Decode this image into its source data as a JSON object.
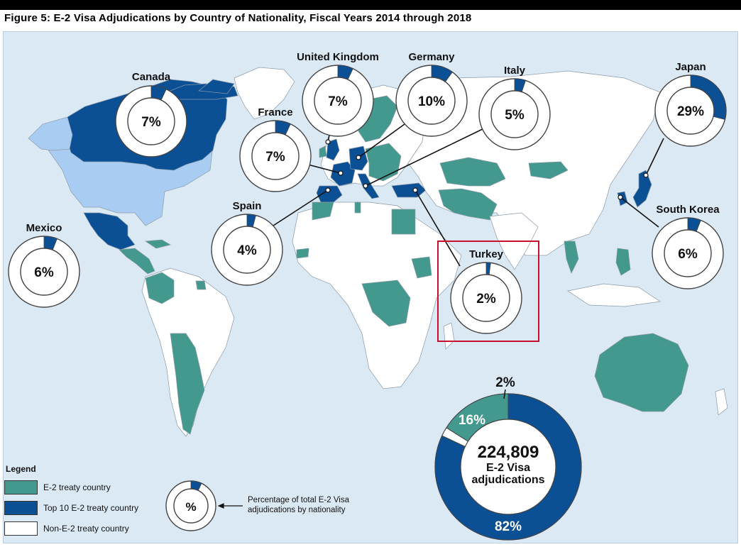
{
  "figure": {
    "title": "Figure 5: E-2 Visa Adjudications by Country of Nationality, Fiscal Years 2014 through 2018"
  },
  "colors": {
    "ocean": "#dbe9f5",
    "e2_treaty": "#44998f",
    "top10": "#0b4f95",
    "non_e2": "#ffffff",
    "light_blue_region": "#a9cdf2",
    "highlight_box": "#c8102e"
  },
  "countries": [
    {
      "name": "Canada",
      "percent": "7%",
      "share": 0.07
    },
    {
      "name": "United Kingdom",
      "percent": "7%",
      "share": 0.07
    },
    {
      "name": "Germany",
      "percent": "10%",
      "share": 0.1
    },
    {
      "name": "Italy",
      "percent": "5%",
      "share": 0.05
    },
    {
      "name": "Japan",
      "percent": "29%",
      "share": 0.29
    },
    {
      "name": "France",
      "percent": "7%",
      "share": 0.07
    },
    {
      "name": "Spain",
      "percent": "4%",
      "share": 0.04
    },
    {
      "name": "Mexico",
      "percent": "6%",
      "share": 0.06
    },
    {
      "name": "Turkey",
      "percent": "2%",
      "share": 0.02
    },
    {
      "name": "South Korea",
      "percent": "6%",
      "share": 0.06
    }
  ],
  "summary": {
    "total": "224,809",
    "line1": "E-2 Visa",
    "line2": "adjudications",
    "segments": [
      {
        "label": "82%",
        "share": 0.82,
        "color": "#0b4f95"
      },
      {
        "label": "2%",
        "share": 0.02,
        "color": "#ffffff"
      },
      {
        "label": "16%",
        "share": 0.16,
        "color": "#44998f"
      }
    ]
  },
  "legend": {
    "title": "Legend",
    "items": [
      {
        "label": "E-2 treaty country",
        "color": "#44998f"
      },
      {
        "label": "Top 10 E-2 treaty country",
        "color": "#0b4f95"
      },
      {
        "label": "Non-E-2 treaty country",
        "color": "#ffffff"
      }
    ],
    "example_percent": "%",
    "example_share": 0.07,
    "note": "Percentage of total E-2 Visa adjudications by nationality"
  }
}
